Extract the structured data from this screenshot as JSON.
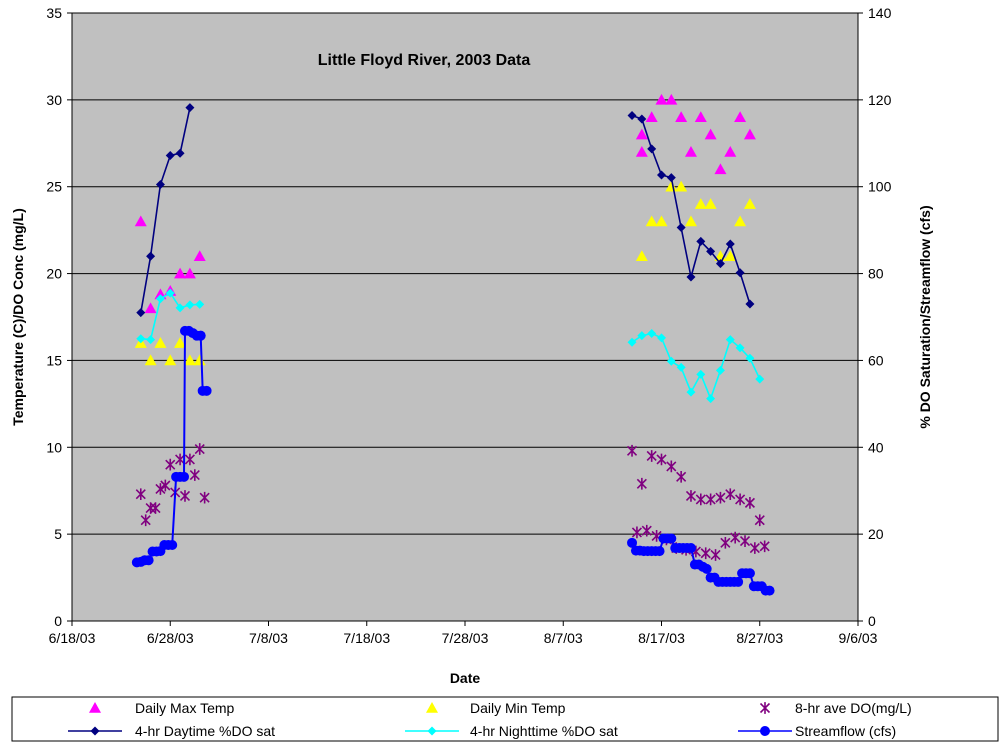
{
  "chart_data": {
    "type": "scatter",
    "title": "Little Floyd River, 2003 Data",
    "xlabel": "Date",
    "ylabel_left": "Temperature (C)/DO Conc (mg/L)",
    "ylabel_right": "% DO Saturation/Streamflow (cfs)",
    "x_ticks": [
      "6/18/03",
      "6/28/03",
      "7/8/03",
      "7/18/03",
      "7/28/03",
      "8/7/03",
      "8/17/03",
      "8/27/03",
      "9/6/03"
    ],
    "x_range": [
      "2003-06-18",
      "2003-09-06"
    ],
    "ylim_left": [
      0,
      35
    ],
    "yticks_left": [
      "0",
      "5",
      "10",
      "15",
      "20",
      "25",
      "30",
      "35"
    ],
    "ylim_right": [
      0,
      140
    ],
    "yticks_right": [
      "0",
      "20",
      "40",
      "60",
      "80",
      "100",
      "120",
      "140"
    ],
    "grid": "horizontal",
    "plot_background": "#c0c0c0",
    "legend_position": "bottom",
    "series": [
      {
        "name": "Daily Max Temp",
        "axis": "left",
        "marker": "triangle",
        "line": false,
        "color": "#ff00ff",
        "points": [
          [
            "2003-06-25",
            23
          ],
          [
            "2003-06-26",
            18
          ],
          [
            "2003-06-27",
            18.8
          ],
          [
            "2003-06-28",
            19
          ],
          [
            "2003-06-29",
            20
          ],
          [
            "2003-06-30",
            20
          ],
          [
            "2003-07-01",
            21
          ],
          [
            "2003-08-15",
            27
          ],
          [
            "2003-08-15",
            28
          ],
          [
            "2003-08-16",
            29
          ],
          [
            "2003-08-17",
            30
          ],
          [
            "2003-08-18",
            30
          ],
          [
            "2003-08-19",
            29
          ],
          [
            "2003-08-20",
            27
          ],
          [
            "2003-08-21",
            29
          ],
          [
            "2003-08-22",
            28
          ],
          [
            "2003-08-23",
            26
          ],
          [
            "2003-08-24",
            27
          ],
          [
            "2003-08-25",
            29
          ],
          [
            "2003-08-26",
            28
          ]
        ]
      },
      {
        "name": "Daily Min Temp",
        "axis": "left",
        "marker": "triangle",
        "line": false,
        "color": "#ffff00",
        "points": [
          [
            "2003-06-25",
            16
          ],
          [
            "2003-06-26",
            15
          ],
          [
            "2003-06-27",
            16
          ],
          [
            "2003-06-28",
            15
          ],
          [
            "2003-06-29",
            16
          ],
          [
            "2003-06-30",
            15
          ],
          [
            "2003-07-01",
            15
          ],
          [
            "2003-08-15",
            21
          ],
          [
            "2003-08-16",
            23
          ],
          [
            "2003-08-17",
            23
          ],
          [
            "2003-08-18",
            25
          ],
          [
            "2003-08-19",
            25
          ],
          [
            "2003-08-20",
            23
          ],
          [
            "2003-08-21",
            24
          ],
          [
            "2003-08-22",
            24
          ],
          [
            "2003-08-23",
            21
          ],
          [
            "2003-08-24",
            21
          ],
          [
            "2003-08-25",
            23
          ],
          [
            "2003-08-26",
            24
          ]
        ]
      },
      {
        "name": "8-hr ave DO(mg/L)",
        "axis": "left",
        "marker": "star",
        "line": false,
        "color": "#800080",
        "points": [
          [
            "2003-06-25",
            7.3
          ],
          [
            "2003-06-25.5",
            5.8
          ],
          [
            "2003-06-26",
            6.5
          ],
          [
            "2003-06-26.5",
            6.5
          ],
          [
            "2003-06-27",
            7.6
          ],
          [
            "2003-06-27.5",
            7.8
          ],
          [
            "2003-06-28",
            9.0
          ],
          [
            "2003-06-28.5",
            7.4
          ],
          [
            "2003-06-29",
            9.3
          ],
          [
            "2003-06-29.5",
            7.2
          ],
          [
            "2003-06-30",
            9.3
          ],
          [
            "2003-06-30.5",
            8.4
          ],
          [
            "2003-07-01",
            9.9
          ],
          [
            "2003-07-01.5",
            7.1
          ],
          [
            "2003-08-14",
            9.8
          ],
          [
            "2003-08-14.5",
            5.1
          ],
          [
            "2003-08-15",
            7.9
          ],
          [
            "2003-08-15.5",
            5.2
          ],
          [
            "2003-08-16",
            9.5
          ],
          [
            "2003-08-16.5",
            4.9
          ],
          [
            "2003-08-17",
            9.3
          ],
          [
            "2003-08-17.5",
            4.7
          ],
          [
            "2003-08-18",
            8.9
          ],
          [
            "2003-08-18.5",
            4.2
          ],
          [
            "2003-08-19",
            8.3
          ],
          [
            "2003-08-19.5",
            4.1
          ],
          [
            "2003-08-20",
            7.2
          ],
          [
            "2003-08-20.5",
            4.0
          ],
          [
            "2003-08-21",
            7.0
          ],
          [
            "2003-08-21.5",
            3.9
          ],
          [
            "2003-08-22",
            7.0
          ],
          [
            "2003-08-22.5",
            3.8
          ],
          [
            "2003-08-23",
            7.1
          ],
          [
            "2003-08-23.5",
            4.5
          ],
          [
            "2003-08-24",
            7.3
          ],
          [
            "2003-08-24.5",
            4.8
          ],
          [
            "2003-08-25",
            7.0
          ],
          [
            "2003-08-25.5",
            4.6
          ],
          [
            "2003-08-26",
            6.8
          ],
          [
            "2003-08-26.5",
            4.2
          ],
          [
            "2003-08-27",
            5.8
          ],
          [
            "2003-08-27.5",
            4.3
          ]
        ]
      },
      {
        "name": "4-hr Daytime %DO sat",
        "axis": "right",
        "marker": "diamond",
        "line": true,
        "color": "#000080",
        "points": [
          [
            "2003-06-25",
            71
          ],
          [
            "2003-06-26",
            84
          ],
          [
            "2003-06-27",
            100.5
          ],
          [
            "2003-06-28",
            107.2
          ],
          [
            "2003-06-29",
            107.7
          ],
          [
            "2003-06-30",
            118.2
          ],
          [
            "2003-08-14",
            116.4
          ],
          [
            "2003-08-15",
            115.6
          ],
          [
            "2003-08-16",
            108.7
          ],
          [
            "2003-08-17",
            102.7
          ],
          [
            "2003-08-18",
            102.1
          ],
          [
            "2003-08-19",
            90.6
          ],
          [
            "2003-08-20",
            79.2
          ],
          [
            "2003-08-21",
            87.4
          ],
          [
            "2003-08-22",
            85.1
          ],
          [
            "2003-08-23",
            82.3
          ],
          [
            "2003-08-24",
            86.8
          ],
          [
            "2003-08-25",
            80.2
          ],
          [
            "2003-08-26",
            73
          ]
        ]
      },
      {
        "name": "4-hr Nighttime %DO sat",
        "axis": "right",
        "marker": "diamond",
        "line": true,
        "color": "#00ffff",
        "points": [
          [
            "2003-06-25",
            65
          ],
          [
            "2003-06-26",
            64.8
          ],
          [
            "2003-06-27",
            74.2
          ],
          [
            "2003-06-28",
            75.5
          ],
          [
            "2003-06-29",
            72.1
          ],
          [
            "2003-06-30",
            72.8
          ],
          [
            "2003-07-01",
            72.9
          ],
          [
            "2003-08-14",
            64.2
          ],
          [
            "2003-08-15",
            65.7
          ],
          [
            "2003-08-16",
            66.2
          ],
          [
            "2003-08-17",
            65.2
          ],
          [
            "2003-08-18",
            59.8
          ],
          [
            "2003-08-19",
            58.4
          ],
          [
            "2003-08-20",
            52.7
          ],
          [
            "2003-08-21",
            56.8
          ],
          [
            "2003-08-22",
            51.2
          ],
          [
            "2003-08-23",
            57.7
          ],
          [
            "2003-08-24",
            64.8
          ],
          [
            "2003-08-25",
            62.9
          ],
          [
            "2003-08-26",
            60.5
          ],
          [
            "2003-08-27",
            55.7
          ]
        ]
      },
      {
        "name": "Streamflow (cfs)",
        "axis": "right",
        "marker": "circle",
        "line": true,
        "color": "#0000ff",
        "points": [
          [
            "2003-06-24.6",
            13.5
          ],
          [
            "2003-06-25",
            13.6
          ],
          [
            "2003-06-25.4",
            14
          ],
          [
            "2003-06-25.8",
            14
          ],
          [
            "2003-06-26.2",
            16
          ],
          [
            "2003-06-26.6",
            16
          ],
          [
            "2003-06-27",
            16.1
          ],
          [
            "2003-06-27.4",
            17.5
          ],
          [
            "2003-06-27.8",
            17.5
          ],
          [
            "2003-06-28.2",
            17.5
          ],
          [
            "2003-06-28.6",
            33.2
          ],
          [
            "2003-06-29",
            33.2
          ],
          [
            "2003-06-29.4",
            33.2
          ],
          [
            "2003-06-29.5",
            66.8
          ],
          [
            "2003-06-29.9",
            66.8
          ],
          [
            "2003-06-30.3",
            66.3
          ],
          [
            "2003-06-30.7",
            65.7
          ],
          [
            "2003-07-01.1",
            65.7
          ],
          [
            "2003-07-01.3",
            53
          ],
          [
            "2003-07-01.7",
            53
          ],
          [
            "2003-08-14",
            18
          ],
          [
            "2003-08-14.4",
            16.2
          ],
          [
            "2003-08-14.8",
            16.2
          ],
          [
            "2003-08-15.2",
            16.1
          ],
          [
            "2003-08-15.6",
            16.1
          ],
          [
            "2003-08-16",
            16.1
          ],
          [
            "2003-08-16.4",
            16.1
          ],
          [
            "2003-08-16.8",
            16.1
          ],
          [
            "2003-08-17.2",
            19
          ],
          [
            "2003-08-17.6",
            19
          ],
          [
            "2003-08-18",
            19
          ],
          [
            "2003-08-18.4",
            16.8
          ],
          [
            "2003-08-18.8",
            16.8
          ],
          [
            "2003-08-19.2",
            16.8
          ],
          [
            "2003-08-19.6",
            16.8
          ],
          [
            "2003-08-20",
            16.8
          ],
          [
            "2003-08-20.4",
            13
          ],
          [
            "2003-08-20.8",
            13
          ],
          [
            "2003-08-21.2",
            12.5
          ],
          [
            "2003-08-21.6",
            12
          ],
          [
            "2003-08-22",
            10
          ],
          [
            "2003-08-22.4",
            10
          ],
          [
            "2003-08-22.8",
            9
          ],
          [
            "2003-08-23.2",
            9
          ],
          [
            "2003-08-23.6",
            9
          ],
          [
            "2003-08-24",
            9
          ],
          [
            "2003-08-24.4",
            9
          ],
          [
            "2003-08-24.8",
            9
          ],
          [
            "2003-08-25.2",
            11
          ],
          [
            "2003-08-25.6",
            11
          ],
          [
            "2003-08-26",
            11
          ],
          [
            "2003-08-26.4",
            8
          ],
          [
            "2003-08-26.8",
            8
          ],
          [
            "2003-08-27.2",
            8
          ],
          [
            "2003-08-27.6",
            7
          ],
          [
            "2003-08-28",
            7
          ]
        ]
      }
    ]
  }
}
